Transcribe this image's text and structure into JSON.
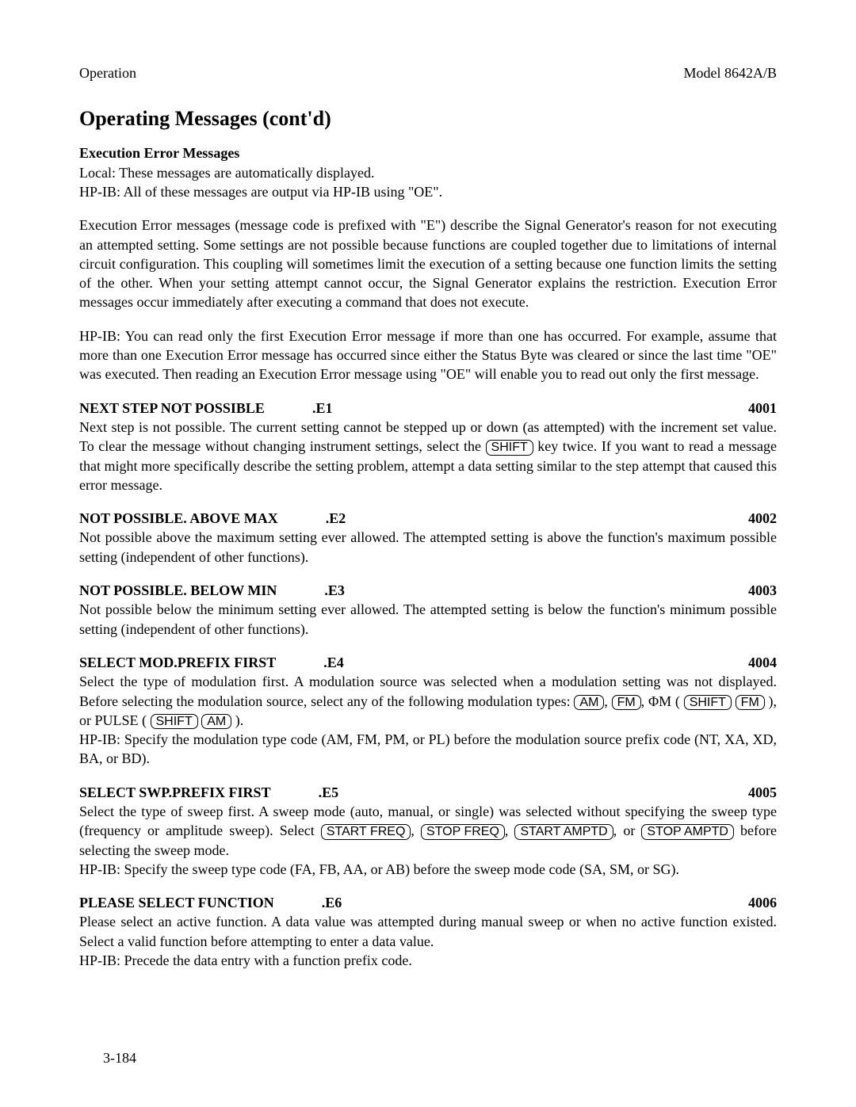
{
  "header": {
    "left": "Operation",
    "right": "Model 8642A/B"
  },
  "title": "Operating Messages (cont'd)",
  "intro": {
    "heading": "Execution Error Messages",
    "line1": "Local: These messages are automatically displayed.",
    "line2": "HP-IB: All of these messages are output via HP-IB using \"OE\".",
    "para1": "Execution Error messages (message code is prefixed with \"E\") describe the Signal Generator's reason for not executing an attempted setting. Some settings are not possible because functions are coupled together due to limitations of internal circuit configuration. This coupling will sometimes limit the execution of a setting because one function limits the setting of the other. When your setting attempt cannot occur, the Signal Generator explains the restriction. Execution Error messages occur immediately after executing a command that does not execute.",
    "para2": "HP-IB: You can read only the first Execution Error message if more than one has occurred. For example, assume that more than one Execution Error message has occurred since either the Status Byte was cleared or since the last time \"OE\" was executed. Then reading an Execution Error message using \"OE\" will enable you to read out only the first message."
  },
  "entries": {
    "e1": {
      "title": "NEXT STEP NOT POSSIBLE",
      "code": ".E1",
      "num": "4001",
      "body_a": "Next step is not possible. The current setting cannot be stepped up or down (as attempted) with the increment set value. To clear the message without changing instrument settings, select the ",
      "key1": "SHIFT",
      "body_b": " key twice. If you want to read a message that might more specifically describe the setting problem, attempt a data setting similar to the step attempt that caused this error message."
    },
    "e2": {
      "title": "NOT POSSIBLE. ABOVE MAX",
      "code": ".E2",
      "num": "4002",
      "body": "Not possible above the maximum setting ever allowed. The attempted setting is above the function's maximum possible setting (independent of other functions)."
    },
    "e3": {
      "title": "NOT POSSIBLE. BELOW MIN",
      "code": ".E3",
      "num": "4003",
      "body": "Not possible below the minimum setting ever allowed. The attempted setting is below the function's minimum possible setting (independent of other functions)."
    },
    "e4": {
      "title": "SELECT MOD.PREFIX FIRST",
      "code": ".E4",
      "num": "4004",
      "body_a": "Select the type of modulation first. A modulation source was selected when a modulation setting was not displayed. Before selecting the modulation source, select any of the following modulation types: ",
      "key_am": "AM",
      "sep1": ", ",
      "key_fm": "FM",
      "sep2": ", ΦM ( ",
      "key_shift": "SHIFT",
      "sp": " ",
      "sep3": " ), or PULSE ( ",
      "sep4": " ).",
      "body_b": "HP-IB: Specify the modulation type code (AM, FM, PM, or PL) before the modulation source prefix code (NT, XA, XD, BA, or BD)."
    },
    "e5": {
      "title": "SELECT SWP.PREFIX FIRST",
      "code": ".E5",
      "num": "4005",
      "body_a": "Select the type of sweep first. A sweep mode (auto, manual, or single) was selected without specifying the sweep type (frequency or amplitude sweep). Select ",
      "key1": "START FREQ",
      "sep1": ", ",
      "key2": "STOP FREQ",
      "sep2": ", ",
      "key3": "START AMPTD",
      "sep3": ", or ",
      "key4": "STOP AMPTD",
      "body_b": " before selecting the sweep mode.",
      "body_c": "HP-IB: Specify the sweep type code (FA, FB, AA, or AB) before the sweep mode code (SA, SM, or SG)."
    },
    "e6": {
      "title": "PLEASE SELECT FUNCTION",
      "code": ".E6",
      "num": "4006",
      "body_a": "Please select an active function. A data value was attempted during manual sweep or when no active function existed. Select a valid function before attempting to enter a data value.",
      "body_b": "HP-IB: Precede the data entry with a function prefix code."
    }
  },
  "pagenum": "3-184"
}
